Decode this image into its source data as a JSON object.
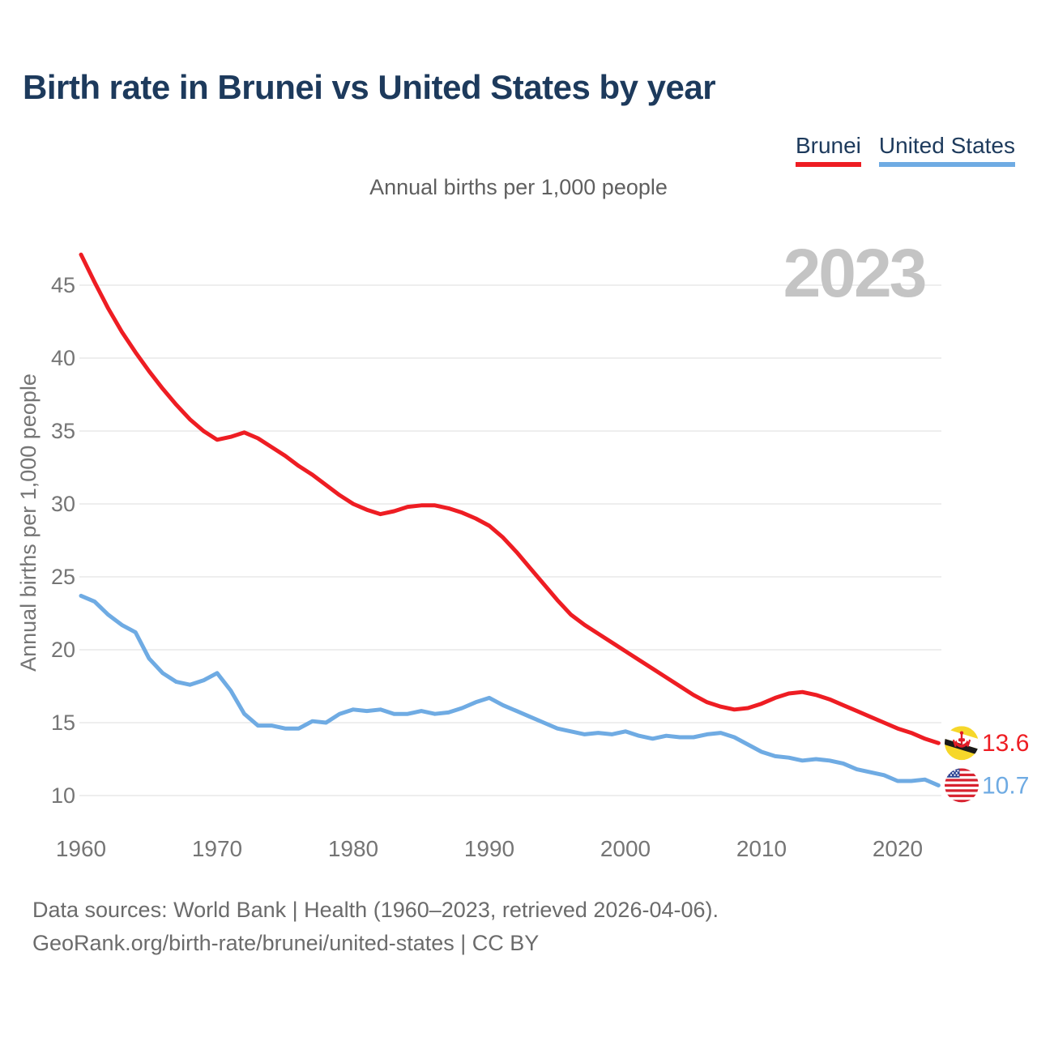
{
  "page": {
    "title": "Birth rate in Brunei vs United States by year",
    "subtitle": "Annual births per 1,000 people",
    "footer_line1": "Data sources: World Bank | Health (1960–2023, retrieved 2026-04-06).",
    "footer_line2": "GeoRank.org/birth-rate/brunei/united-states | CC BY"
  },
  "colors": {
    "title": "#1d3a5c",
    "brunei": "#ee1d23",
    "united_states": "#6fabe3",
    "watermark": "#c4c4c4",
    "gridline": "#e8e8e8",
    "tick_text": "#757575"
  },
  "legend": {
    "items": [
      {
        "label": "Brunei",
        "color": "#ee1d23"
      },
      {
        "label": "United States",
        "color": "#6fabe3"
      }
    ]
  },
  "chart_data": {
    "type": "line",
    "title": "Annual births per 1,000 people",
    "xlabel": "",
    "ylabel": "Annual births per 1,000 people",
    "watermark": "2023",
    "legend_position": "top-right",
    "grid": "horizontal-only",
    "x_ticks": [
      1960,
      1970,
      1980,
      1990,
      2000,
      2010,
      2020
    ],
    "y_ticks": [
      10,
      15,
      20,
      25,
      30,
      35,
      40,
      45
    ],
    "xlim": [
      1960,
      2023
    ],
    "ylim": [
      8.5,
      47.5
    ],
    "years": [
      1960,
      1961,
      1962,
      1963,
      1964,
      1965,
      1966,
      1967,
      1968,
      1969,
      1970,
      1971,
      1972,
      1973,
      1974,
      1975,
      1976,
      1977,
      1978,
      1979,
      1980,
      1981,
      1982,
      1983,
      1984,
      1985,
      1986,
      1987,
      1988,
      1989,
      1990,
      1991,
      1992,
      1993,
      1994,
      1995,
      1996,
      1997,
      1998,
      1999,
      2000,
      2001,
      2002,
      2003,
      2004,
      2005,
      2006,
      2007,
      2008,
      2009,
      2010,
      2011,
      2012,
      2013,
      2014,
      2015,
      2016,
      2017,
      2018,
      2019,
      2020,
      2021,
      2022,
      2023
    ],
    "series": [
      {
        "id": "brunei",
        "name": "Brunei",
        "color": "#ee1d23",
        "end_label": "13.6",
        "values": [
          47.1,
          45.2,
          43.4,
          41.8,
          40.4,
          39.1,
          37.9,
          36.8,
          35.8,
          35.0,
          34.4,
          34.6,
          34.9,
          34.5,
          33.9,
          33.3,
          32.6,
          32.0,
          31.3,
          30.6,
          30.0,
          29.6,
          29.3,
          29.5,
          29.8,
          29.9,
          29.9,
          29.7,
          29.4,
          29.0,
          28.5,
          27.7,
          26.7,
          25.6,
          24.5,
          23.4,
          22.4,
          21.7,
          21.1,
          20.5,
          19.9,
          19.3,
          18.7,
          18.1,
          17.5,
          16.9,
          16.4,
          16.1,
          15.9,
          16.0,
          16.3,
          16.7,
          17.0,
          17.1,
          16.9,
          16.6,
          16.2,
          15.8,
          15.4,
          15.0,
          14.6,
          14.3,
          13.9,
          13.6
        ]
      },
      {
        "id": "united-states",
        "name": "United States",
        "color": "#6fabe3",
        "end_label": "10.7",
        "values": [
          23.7,
          23.3,
          22.4,
          21.7,
          21.2,
          19.4,
          18.4,
          17.8,
          17.6,
          17.9,
          18.4,
          17.2,
          15.6,
          14.8,
          14.8,
          14.6,
          14.6,
          15.1,
          15.0,
          15.6,
          15.9,
          15.8,
          15.9,
          15.6,
          15.6,
          15.8,
          15.6,
          15.7,
          16.0,
          16.4,
          16.7,
          16.2,
          15.8,
          15.4,
          15.0,
          14.6,
          14.4,
          14.2,
          14.3,
          14.2,
          14.4,
          14.1,
          13.9,
          14.1,
          14.0,
          14.0,
          14.2,
          14.3,
          14.0,
          13.5,
          13.0,
          12.7,
          12.6,
          12.4,
          12.5,
          12.4,
          12.2,
          11.8,
          11.6,
          11.4,
          11.0,
          11.0,
          11.1,
          10.7
        ]
      }
    ]
  }
}
